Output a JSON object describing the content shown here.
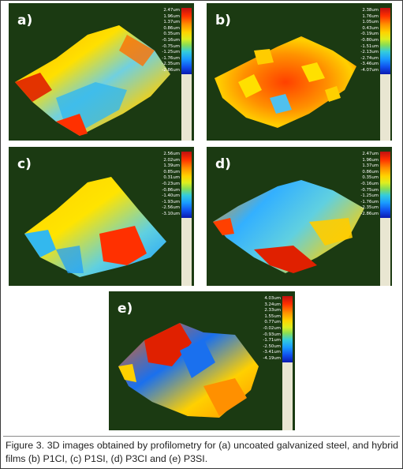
{
  "panels": [
    {
      "label": "a)",
      "scale_ticks": [
        "2.47um",
        "1.96um",
        "1.37um",
        "0.86um",
        "0.35um",
        "-0.16um",
        "-0.75um",
        "-1.25um",
        "-1.76um",
        "-2.35um",
        "-2.86um"
      ],
      "colorbar": [
        "#c01010",
        "#ff3000",
        "#ff9000",
        "#ffd400",
        "#ddee20",
        "#88dd55",
        "#33ccdd",
        "#1a9cff",
        "#1050ee",
        "#0a1ab0"
      ]
    },
    {
      "label": "b)",
      "scale_ticks": [
        "2.38um",
        "1.76um",
        "1.05um",
        "0.43um",
        "-0.19um",
        "-0.80um",
        "-1.51um",
        "-2.13um",
        "-2.74um",
        "-3.46um",
        "-4.07um"
      ],
      "colorbar": [
        "#c01010",
        "#ff3000",
        "#ff9000",
        "#ffd400",
        "#ddee20",
        "#88dd55",
        "#33ccdd",
        "#1a9cff",
        "#1050ee",
        "#0a1ab0"
      ]
    },
    {
      "label": "c)",
      "scale_ticks": [
        "2.56um",
        "2.02um",
        "1.39um",
        "0.85um",
        "0.31um",
        "-0.23um",
        "-0.86um",
        "-1.40um",
        "-1.93um",
        "-2.56um",
        "-3.10um"
      ],
      "colorbar": [
        "#c01010",
        "#ff3000",
        "#ff9000",
        "#ffd400",
        "#ddee20",
        "#88dd55",
        "#33ccdd",
        "#1a9cff",
        "#1050ee",
        "#0a1ab0"
      ]
    },
    {
      "label": "d)",
      "scale_ticks": [
        "2.47um",
        "1.96um",
        "1.37um",
        "0.86um",
        "0.35um",
        "-0.16um",
        "-0.75um",
        "-1.25um",
        "-1.76um",
        "-2.35um",
        "-2.86um"
      ],
      "colorbar": [
        "#c01010",
        "#ff3000",
        "#ff9000",
        "#ffd400",
        "#ddee20",
        "#88dd55",
        "#33ccdd",
        "#1a9cff",
        "#1050ee",
        "#0a1ab0"
      ]
    },
    {
      "label": "e)",
      "scale_ticks": [
        "4.03um",
        "3.24um",
        "2.33um",
        "1.55um",
        "0.77um",
        "-0.02um",
        "-0.93um",
        "-1.71um",
        "-2.50um",
        "-3.41um",
        "-4.19um"
      ],
      "colorbar": [
        "#c01010",
        "#ff3000",
        "#ff9000",
        "#ffd400",
        "#ddee20",
        "#88dd55",
        "#33ccdd",
        "#1a9cff",
        "#1050ee",
        "#0a1ab0"
      ]
    }
  ],
  "colors": {
    "panel_background": "#1b3a12",
    "scale_bar_background": "#e9e6d2"
  },
  "caption": "Figure 3. 3D images obtained by profilometry for (a) uncoated galvanized steel, and hybrid films (b) P1CI, (c) P1SI, (d) P3CI and (e) P3SI."
}
